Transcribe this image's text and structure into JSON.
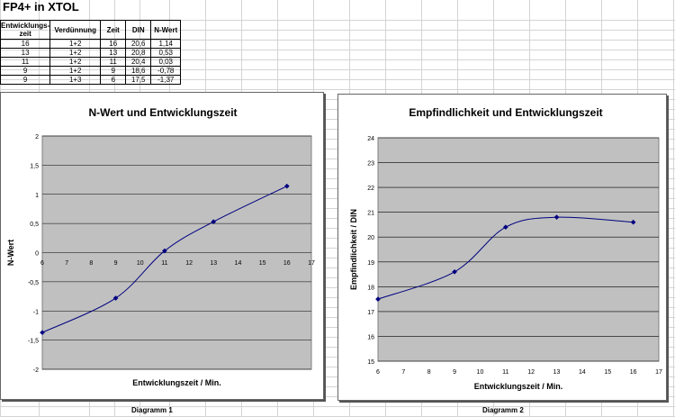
{
  "sheet": {
    "title": "FP4+ in XTOL",
    "table": {
      "headers": [
        "Entwicklungs-zeit",
        "Verdünnung",
        "Zeit",
        "DIN",
        "N-Wert"
      ],
      "rows": [
        [
          "16",
          "1+2",
          "16",
          "20,6",
          "1,14"
        ],
        [
          "13",
          "1+2",
          "13",
          "20,8",
          "0,53"
        ],
        [
          "11",
          "1+2",
          "11",
          "20,4",
          "0,03"
        ],
        [
          "9",
          "1+2",
          "9",
          "18,6",
          "-0,78"
        ],
        [
          "9",
          "1+3",
          "6",
          "17,5",
          "-1,37"
        ]
      ]
    },
    "diagram_labels": [
      "Diagramm 1",
      "Diagramm 2"
    ]
  },
  "chart_data": [
    {
      "type": "line",
      "title": "N-Wert und Entwicklungszeit",
      "xlabel": "Entwicklungszeit / Min.",
      "ylabel": "N-Wert",
      "xlim": [
        6,
        17
      ],
      "ylim": [
        -2,
        2
      ],
      "x_ticks": [
        "6",
        "7",
        "8",
        "9",
        "10",
        "11",
        "12",
        "13",
        "14",
        "15",
        "16",
        "17"
      ],
      "y_ticks": [
        "2",
        "1,5",
        "1",
        "0,5",
        "0",
        "-0,5",
        "-1",
        "-1,5",
        "-2"
      ],
      "grid": true,
      "x": [
        6,
        9,
        11,
        13,
        16
      ],
      "y": [
        -1.37,
        -0.78,
        0.03,
        0.53,
        1.14
      ],
      "plot_color": "#c0c0c0",
      "line_color": "#000080"
    },
    {
      "type": "line",
      "title": "Empfindlichkeit und Entwicklungszeit",
      "xlabel": "Entwicklungszeit / Min.",
      "ylabel": "Empfindlichkeit / DIN",
      "xlim": [
        6,
        17
      ],
      "ylim": [
        15,
        24
      ],
      "x_ticks": [
        "6",
        "7",
        "8",
        "9",
        "10",
        "11",
        "12",
        "13",
        "14",
        "15",
        "16",
        "17"
      ],
      "y_ticks": [
        "24",
        "23",
        "22",
        "21",
        "20",
        "19",
        "18",
        "17",
        "16",
        "15"
      ],
      "grid": true,
      "x": [
        6,
        9,
        11,
        13,
        16
      ],
      "y": [
        17.5,
        18.6,
        20.4,
        20.8,
        20.6
      ],
      "plot_color": "#c0c0c0",
      "line_color": "#000080"
    }
  ]
}
